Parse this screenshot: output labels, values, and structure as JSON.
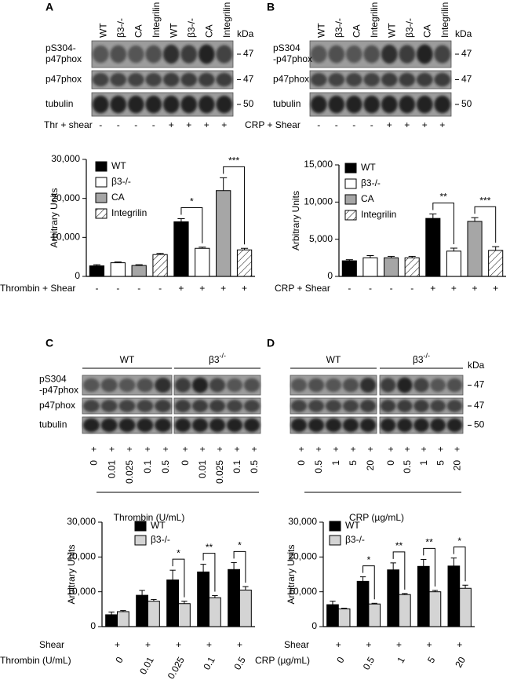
{
  "blots": [
    {
      "letter": "A",
      "lanes": [
        "WT",
        "β3-/-",
        "CA",
        "Integrilin",
        "WT",
        "β3-/-",
        "CA",
        "Integrilin"
      ],
      "rows": [
        [
          "pS304-",
          "p47phox"
        ],
        [
          "p47phox"
        ],
        [
          "tubulin"
        ]
      ],
      "kda": "kDa",
      "markers": [
        "47",
        "47",
        "50"
      ],
      "treatment": {
        "label": "Thr + shear",
        "values": [
          "-",
          "-",
          "-",
          "-",
          "+",
          "+",
          "+",
          "+"
        ]
      }
    },
    {
      "letter": "B",
      "lanes": [
        "WT",
        "β3-/-",
        "CA",
        "Integrilin",
        "WT",
        "β3-/-",
        "CA",
        "Integrilin"
      ],
      "rows": [
        [
          "pS304",
          "-p47phox"
        ],
        [
          "p47phox"
        ],
        [
          "tubulin"
        ]
      ],
      "kda": "kDa",
      "markers": [
        "47",
        "47",
        "50"
      ],
      "treatment": {
        "label": "CRP + Shear",
        "values": [
          "-",
          "-",
          "-",
          "-",
          "+",
          "+",
          "+",
          "+"
        ]
      }
    },
    {
      "letter": "C",
      "groups": [
        {
          "name": "WT"
        },
        {
          "name": "β3",
          "sup": "-/-"
        }
      ],
      "rows": [
        [
          "pS304",
          "-p47phox"
        ],
        [
          "p47phox"
        ],
        [
          "tubulin"
        ]
      ],
      "shear": [
        "+",
        "+",
        "+",
        "+",
        "+",
        "+",
        "+",
        "+",
        "+",
        "+"
      ],
      "doses": [
        "0",
        "0.01",
        "0.025",
        "0.1",
        "0.5",
        "0",
        "0.01",
        "0.025",
        "0.1",
        "0.5"
      ],
      "x_label": "Thrombin (U/mL)"
    },
    {
      "letter": "D",
      "groups": [
        {
          "name": "WT"
        },
        {
          "name": "β3",
          "sup": "-/-"
        }
      ],
      "rows": [
        [],
        [],
        []
      ],
      "kda": "kDa",
      "markers": [
        "47",
        "47",
        "50"
      ],
      "shear": [
        "+",
        "+",
        "+",
        "+",
        "+",
        "+",
        "+",
        "+",
        "+",
        "+"
      ],
      "doses": [
        "0",
        "0.5",
        "1",
        "5",
        "20",
        "0",
        "0.5",
        "1",
        "5",
        "20"
      ],
      "x_label": "CRP (µg/mL)"
    }
  ],
  "chart_data": [
    {
      "type": "bar",
      "y_label": "Arbitrary Units",
      "x_label": "Thrombin + Shear",
      "categories": [
        "-",
        "-",
        "-",
        "-",
        "+",
        "+",
        "+",
        "+"
      ],
      "ylim": [
        0,
        30000
      ],
      "yticks": [
        0,
        {
          "value": 10000,
          "label": "10,000"
        },
        {
          "value": 20000,
          "label": "20,000"
        },
        {
          "value": 30000,
          "label": "30,000"
        }
      ],
      "series": [
        {
          "name": "WT",
          "color": "#000000",
          "values": [
            2700,
            null,
            null,
            null,
            14000,
            null,
            null,
            null
          ],
          "errors": [
            300,
            null,
            null,
            null,
            800,
            null,
            null,
            null
          ]
        },
        {
          "name": "β3-/-",
          "color": "#ffffff",
          "values": [
            null,
            3500,
            null,
            null,
            null,
            7200,
            null,
            null
          ],
          "errors": [
            null,
            200,
            null,
            null,
            null,
            300,
            null,
            null
          ]
        },
        {
          "name": "CA",
          "color": "#a6a6a6",
          "values": [
            null,
            null,
            2800,
            null,
            null,
            null,
            22000,
            null
          ],
          "errors": [
            null,
            null,
            200,
            null,
            null,
            null,
            3300,
            null
          ]
        },
        {
          "name": "Integrilin",
          "color": "#ffffff",
          "hatch": true,
          "values": [
            null,
            null,
            null,
            5600,
            null,
            null,
            null,
            6800
          ],
          "errors": [
            null,
            null,
            null,
            300,
            null,
            null,
            null,
            400
          ]
        }
      ],
      "annotations": [
        {
          "text": "*",
          "categories": [
            4,
            5
          ]
        },
        {
          "text": "***",
          "categories": [
            6,
            7
          ]
        }
      ]
    },
    {
      "type": "bar",
      "y_label": "Arbitrary Units",
      "x_label": "CRP + Shear",
      "categories": [
        "-",
        "-",
        "-",
        "-",
        "+",
        "+",
        "+",
        "+"
      ],
      "ylim": [
        0,
        15000
      ],
      "yticks": [
        0,
        {
          "value": 5000,
          "label": "5,000"
        },
        {
          "value": 10000,
          "label": "10,000"
        },
        {
          "value": 15000,
          "label": "15,000"
        }
      ],
      "series": [
        {
          "name": "WT",
          "color": "#000000",
          "values": [
            2100,
            null,
            null,
            null,
            7800,
            null,
            null,
            null
          ],
          "errors": [
            150,
            null,
            null,
            null,
            600,
            null,
            null,
            null
          ]
        },
        {
          "name": "β3-/-",
          "color": "#ffffff",
          "values": [
            null,
            2500,
            null,
            null,
            null,
            3400,
            null,
            null
          ],
          "errors": [
            null,
            300,
            null,
            null,
            null,
            400,
            null,
            null
          ]
        },
        {
          "name": "CA",
          "color": "#a6a6a6",
          "values": [
            null,
            null,
            2500,
            null,
            null,
            null,
            7400,
            null
          ],
          "errors": [
            null,
            null,
            200,
            null,
            null,
            null,
            500,
            null
          ]
        },
        {
          "name": "Integrilin",
          "color": "#ffffff",
          "hatch": true,
          "values": [
            null,
            null,
            null,
            2500,
            null,
            null,
            null,
            3500
          ],
          "errors": [
            null,
            null,
            null,
            200,
            null,
            null,
            null,
            500
          ]
        }
      ],
      "annotations": [
        {
          "text": "**",
          "categories": [
            4,
            5
          ]
        },
        {
          "text": "***",
          "categories": [
            6,
            7
          ]
        }
      ]
    },
    {
      "type": "bar",
      "y_label": "Arbitrary Units",
      "x_label": "Thrombin (U/mL)",
      "shear": {
        "label": "Shear",
        "values": [
          "+",
          "+",
          "+",
          "+",
          "+"
        ]
      },
      "categories": [
        "0",
        "0.01",
        "0.025",
        "0.1",
        "0.5"
      ],
      "ylim": [
        0,
        30000
      ],
      "yticks": [
        0,
        {
          "value": 10000,
          "label": "10,000"
        },
        {
          "value": 20000,
          "label": "20,000"
        },
        {
          "value": 30000,
          "label": "30,000"
        }
      ],
      "series": [
        {
          "name": "WT",
          "color": "#000000",
          "values": [
            3400,
            9000,
            13400,
            15700,
            16400
          ],
          "errors": [
            800,
            1400,
            2800,
            2200,
            2000
          ]
        },
        {
          "name": "β3-/-",
          "color": "#d4d4d4",
          "values": [
            4300,
            7300,
            6600,
            8300,
            10500
          ],
          "errors": [
            300,
            500,
            700,
            600,
            1000
          ]
        }
      ],
      "annotations": [
        {
          "text": "*",
          "categories": [
            2
          ]
        },
        {
          "text": "**",
          "categories": [
            3
          ]
        },
        {
          "text": "*",
          "categories": [
            4
          ]
        }
      ]
    },
    {
      "type": "bar",
      "y_label": "Arbitrary Units",
      "x_label": "CRP (µg/mL)",
      "shear": {
        "label": "Shear",
        "values": [
          "+",
          "+",
          "+",
          "+",
          "+"
        ]
      },
      "categories": [
        "0",
        "0.5",
        "1",
        "5",
        "20"
      ],
      "ylim": [
        0,
        30000
      ],
      "yticks": [
        0,
        {
          "value": 10000,
          "label": "10,000"
        },
        {
          "value": 20000,
          "label": "20,000"
        },
        {
          "value": 30000,
          "label": "30,000"
        }
      ],
      "series": [
        {
          "name": "WT",
          "color": "#000000",
          "values": [
            6300,
            13000,
            16300,
            17300,
            17400
          ],
          "errors": [
            1000,
            1300,
            2000,
            2000,
            2300
          ]
        },
        {
          "name": "β3-/-",
          "color": "#d4d4d4",
          "values": [
            5100,
            6500,
            9200,
            10000,
            11000
          ],
          "errors": [
            200,
            200,
            300,
            400,
            900
          ]
        }
      ],
      "annotations": [
        {
          "text": "*",
          "categories": [
            1
          ]
        },
        {
          "text": "**",
          "categories": [
            2
          ]
        },
        {
          "text": "**",
          "categories": [
            3
          ]
        },
        {
          "text": "*",
          "categories": [
            4
          ]
        }
      ]
    }
  ]
}
